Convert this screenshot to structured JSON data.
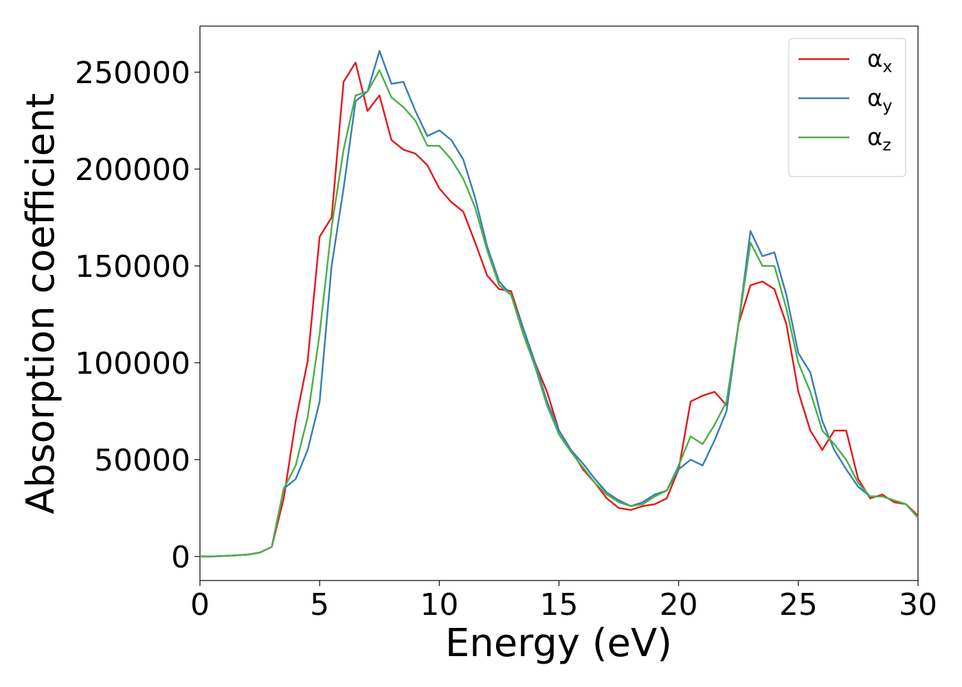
{
  "chart_data": {
    "type": "line",
    "xlabel": "Energy (eV)",
    "ylabel": "Absorption coefficient",
    "x": [
      0,
      0.5,
      1,
      1.5,
      2,
      2.5,
      3,
      3.5,
      4,
      4.5,
      5,
      5.5,
      6,
      6.5,
      7,
      7.5,
      8,
      8.5,
      9,
      9.5,
      10,
      10.5,
      11,
      11.5,
      12,
      12.5,
      13,
      13.5,
      14,
      14.5,
      15,
      15.5,
      16,
      16.5,
      17,
      17.5,
      18,
      18.5,
      19,
      19.5,
      20,
      20.5,
      21,
      21.5,
      22,
      22.5,
      23,
      23.5,
      24,
      24.5,
      25,
      25.5,
      26,
      26.5,
      27,
      27.5,
      28,
      28.5,
      29,
      29.5,
      30
    ],
    "series": [
      {
        "name": "αx",
        "color": "#e41a1c",
        "values": [
          0,
          0,
          300,
          600,
          1000,
          2000,
          5000,
          30000,
          70000,
          101000,
          165000,
          175000,
          245000,
          255000,
          230000,
          238000,
          215000,
          210000,
          208000,
          202000,
          190000,
          183000,
          178000,
          162000,
          145000,
          138000,
          137000,
          118000,
          100000,
          85000,
          65000,
          55000,
          45000,
          38000,
          30000,
          25000,
          24000,
          26000,
          27000,
          30000,
          45000,
          80000,
          83000,
          85000,
          78000,
          120000,
          140000,
          142000,
          138000,
          120000,
          85000,
          65000,
          55000,
          65000,
          65000,
          40000,
          30000,
          32000,
          28000,
          27000,
          21000
        ]
      },
      {
        "name": "αy",
        "color": "#377eb8",
        "values": [
          0,
          0,
          300,
          600,
          1000,
          2000,
          5000,
          35000,
          40000,
          55000,
          80000,
          150000,
          190000,
          235000,
          240000,
          261000,
          244000,
          245000,
          230000,
          217000,
          220000,
          215000,
          205000,
          185000,
          160000,
          142000,
          135000,
          118000,
          100000,
          80000,
          65000,
          55000,
          48000,
          40000,
          33000,
          29000,
          26000,
          28000,
          32000,
          34000,
          45000,
          50000,
          47000,
          60000,
          75000,
          120000,
          168000,
          155000,
          157000,
          135000,
          105000,
          95000,
          70000,
          55000,
          45000,
          36000,
          31000,
          31000,
          29000,
          27000,
          20000
        ]
      },
      {
        "name": "αz",
        "color": "#4daf4a",
        "values": [
          0,
          0,
          300,
          600,
          1000,
          2000,
          5000,
          35000,
          47000,
          72000,
          115000,
          170000,
          210000,
          238000,
          240000,
          251000,
          237000,
          232000,
          225000,
          212000,
          212000,
          205000,
          195000,
          180000,
          158000,
          140000,
          135000,
          115000,
          98000,
          78000,
          63000,
          54000,
          46000,
          38000,
          32000,
          28000,
          26000,
          27000,
          31000,
          34000,
          47000,
          62000,
          58000,
          68000,
          80000,
          120000,
          162000,
          150000,
          150000,
          128000,
          100000,
          85000,
          65000,
          58000,
          50000,
          38000,
          31000,
          31000,
          29000,
          27000,
          20000
        ]
      }
    ],
    "xlim": [
      0,
      30
    ],
    "xticks": [
      0,
      5,
      10,
      15,
      20,
      25,
      30
    ],
    "ylim": [
      -12400,
      273800
    ],
    "yticks": [
      0,
      50000,
      100000,
      150000,
      200000,
      250000
    ],
    "legend": "upper right",
    "grid": false
  }
}
